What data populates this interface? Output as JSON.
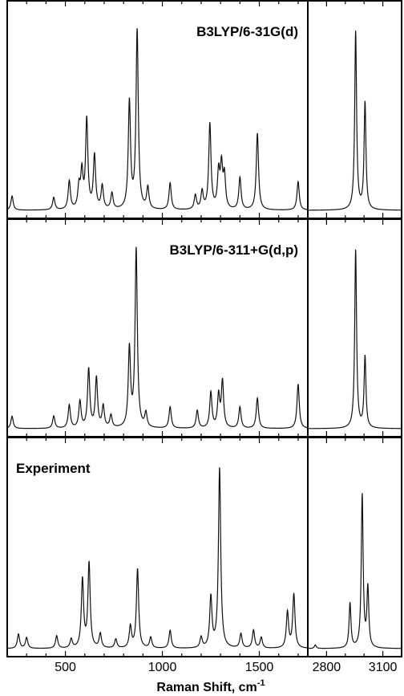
{
  "chart_data": {
    "type": "line",
    "xlabel": "Raman Shift, cm",
    "xlabel_superscript": "-1",
    "x_axis_break": {
      "left_segment": {
        "range": [
          200,
          1750
        ],
        "tick_labels": [
          "500",
          "1000",
          "1500"
        ],
        "tick_values": [
          500,
          1000,
          1500
        ]
      },
      "right_segment": {
        "range": [
          2700,
          3200
        ],
        "tick_labels": [
          "2800",
          "3100"
        ],
        "tick_values": [
          2800,
          3100
        ]
      }
    },
    "y_axis": {
      "shown": false,
      "scale": "relative intensity"
    },
    "grid": false,
    "panels": [
      {
        "label": "B3LYP/6-31G(d)",
        "label_position": "top-right",
        "series": [
          {
            "peaks": [
              [
                225,
                0.08
              ],
              [
                440,
                0.07
              ],
              [
                520,
                0.16
              ],
              [
                570,
                0.12
              ],
              [
                585,
                0.2
              ],
              [
                610,
                0.5
              ],
              [
                650,
                0.3
              ],
              [
                690,
                0.13
              ],
              [
                740,
                0.09
              ],
              [
                830,
                0.6
              ],
              [
                870,
                1.0
              ],
              [
                925,
                0.12
              ],
              [
                1040,
                0.15
              ],
              [
                1170,
                0.08
              ],
              [
                1205,
                0.1
              ],
              [
                1245,
                0.48
              ],
              [
                1290,
                0.2
              ],
              [
                1305,
                0.23
              ],
              [
                1320,
                0.18
              ],
              [
                1400,
                0.18
              ],
              [
                1490,
                0.43
              ],
              [
                1700,
                0.16
              ],
              [
                2955,
                1.0
              ],
              [
                3005,
                0.6
              ]
            ]
          }
        ]
      },
      {
        "label": "B3LYP/6-311+G(d,p)",
        "label_position": "top-right",
        "series": [
          {
            "peaks": [
              [
                225,
                0.07
              ],
              [
                440,
                0.07
              ],
              [
                520,
                0.13
              ],
              [
                575,
                0.15
              ],
              [
                620,
                0.33
              ],
              [
                660,
                0.28
              ],
              [
                695,
                0.12
              ],
              [
                735,
                0.07
              ],
              [
                830,
                0.44
              ],
              [
                865,
                1.0
              ],
              [
                915,
                0.08
              ],
              [
                1040,
                0.12
              ],
              [
                1180,
                0.1
              ],
              [
                1250,
                0.2
              ],
              [
                1290,
                0.18
              ],
              [
                1310,
                0.26
              ],
              [
                1400,
                0.12
              ],
              [
                1490,
                0.17
              ],
              [
                1700,
                0.25
              ],
              [
                2955,
                1.0
              ],
              [
                3005,
                0.4
              ]
            ]
          }
        ]
      },
      {
        "label": "Experiment",
        "label_position": "top-left",
        "series": [
          {
            "peaks": [
              [
                258,
                0.08
              ],
              [
                300,
                0.06
              ],
              [
                455,
                0.07
              ],
              [
                530,
                0.05
              ],
              [
                588,
                0.38
              ],
              [
                622,
                0.47
              ],
              [
                680,
                0.08
              ],
              [
                760,
                0.05
              ],
              [
                835,
                0.12
              ],
              [
                872,
                0.44
              ],
              [
                940,
                0.06
              ],
              [
                1040,
                0.1
              ],
              [
                1200,
                0.06
              ],
              [
                1250,
                0.28
              ],
              [
                1295,
                1.0
              ],
              [
                1405,
                0.08
              ],
              [
                1470,
                0.1
              ],
              [
                1510,
                0.06
              ],
              [
                1645,
                0.2
              ],
              [
                1678,
                0.3
              ],
              [
                2740,
                0.02
              ],
              [
                2925,
                0.25
              ],
              [
                2990,
                0.85
              ],
              [
                3020,
                0.33
              ]
            ]
          }
        ]
      }
    ]
  }
}
